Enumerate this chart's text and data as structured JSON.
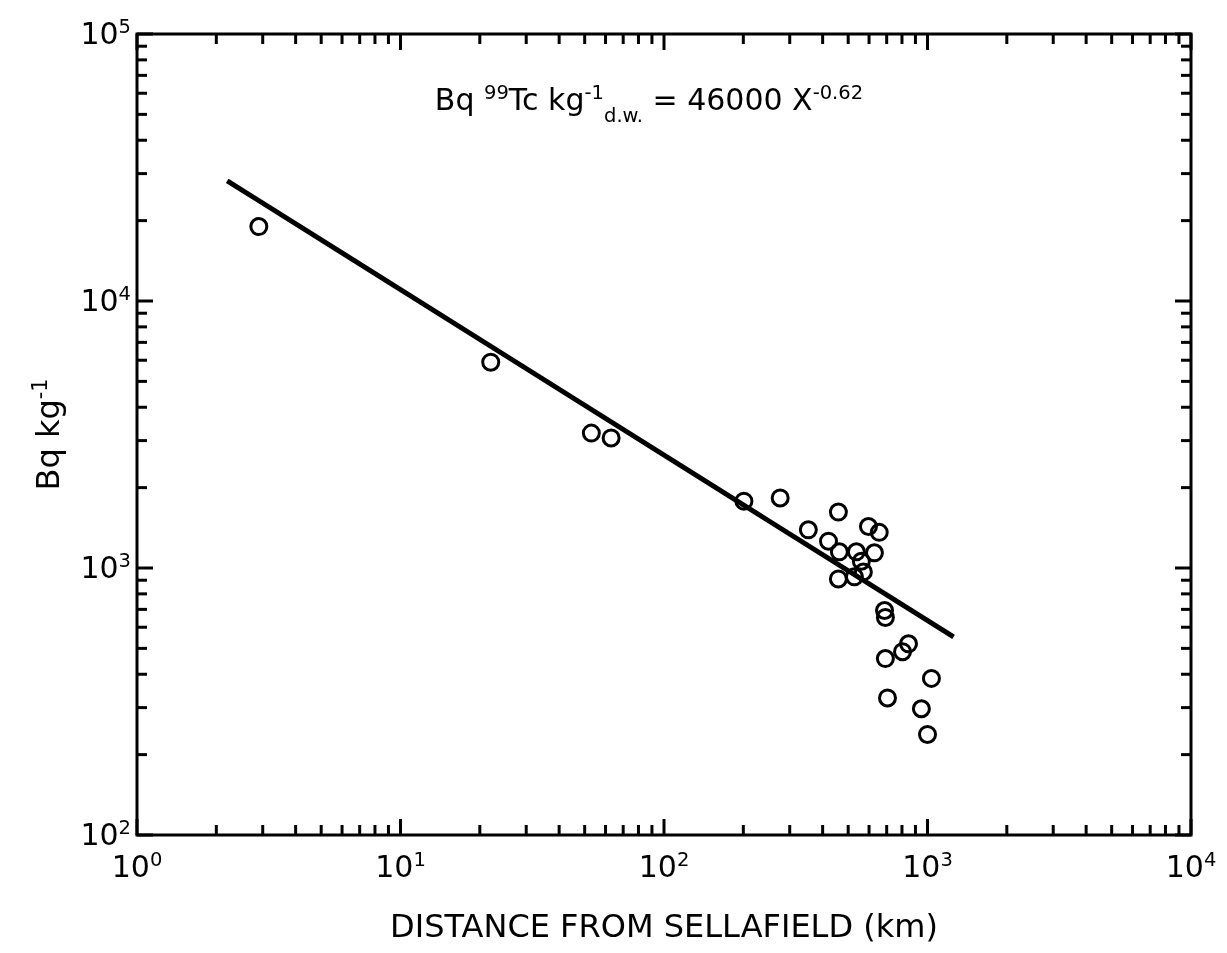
{
  "chart_data": {
    "type": "scatter",
    "xlabel": "DISTANCE FROM SELLAFIELD (km)",
    "ylabel": "Bq kg$^{-1}$",
    "annotations": [
      "Bq $^{99}$Tc kg$^{-1}$$_{d.w.}$ = 46000 X$^{-0.62}$"
    ],
    "log": "xy",
    "grid": false,
    "marker": "circle",
    "xlim": [
      1,
      10000
    ],
    "ylim": [
      100,
      100000
    ],
    "xticks": [
      {
        "value": 1,
        "label": "10$^{0}$"
      },
      {
        "value": 2,
        "label": null
      },
      {
        "value": 3,
        "label": null
      },
      {
        "value": 4,
        "label": null
      },
      {
        "value": 5,
        "label": null
      },
      {
        "value": 6,
        "label": null
      },
      {
        "value": 7,
        "label": null
      },
      {
        "value": 8,
        "label": null
      },
      {
        "value": 9,
        "label": null
      },
      {
        "value": 10,
        "label": "10$^{1}$"
      },
      {
        "value": 20,
        "label": null
      },
      {
        "value": 30,
        "label": null
      },
      {
        "value": 40,
        "label": null
      },
      {
        "value": 50,
        "label": null
      },
      {
        "value": 60,
        "label": null
      },
      {
        "value": 70,
        "label": null
      },
      {
        "value": 80,
        "label": null
      },
      {
        "value": 90,
        "label": null
      },
      {
        "value": 100,
        "label": "10$^{2}$"
      },
      {
        "value": 200,
        "label": null
      },
      {
        "value": 300,
        "label": null
      },
      {
        "value": 400,
        "label": null
      },
      {
        "value": 500,
        "label": null
      },
      {
        "value": 600,
        "label": null
      },
      {
        "value": 700,
        "label": null
      },
      {
        "value": 800,
        "label": null
      },
      {
        "value": 900,
        "label": null
      },
      {
        "value": 1000,
        "label": "10$^{3}$"
      },
      {
        "value": 2000,
        "label": null
      },
      {
        "value": 3000,
        "label": null
      },
      {
        "value": 4000,
        "label": null
      },
      {
        "value": 5000,
        "label": null
      },
      {
        "value": 6000,
        "label": null
      },
      {
        "value": 7000,
        "label": null
      },
      {
        "value": 8000,
        "label": null
      },
      {
        "value": 9000,
        "label": null
      },
      {
        "value": 10000,
        "label": "10$^{4}$"
      }
    ],
    "yticks": [
      {
        "value": 100,
        "label": "10$^{2}$"
      },
      {
        "value": 200,
        "label": null
      },
      {
        "value": 300,
        "label": null
      },
      {
        "value": 400,
        "label": null
      },
      {
        "value": 500,
        "label": null
      },
      {
        "value": 600,
        "label": null
      },
      {
        "value": 700,
        "label": null
      },
      {
        "value": 800,
        "label": null
      },
      {
        "value": 900,
        "label": null
      },
      {
        "value": 1000,
        "label": "10$^{3}$"
      },
      {
        "value": 2000,
        "label": null
      },
      {
        "value": 3000,
        "label": null
      },
      {
        "value": 4000,
        "label": null
      },
      {
        "value": 5000,
        "label": null
      },
      {
        "value": 6000,
        "label": null
      },
      {
        "value": 7000,
        "label": null
      },
      {
        "value": 8000,
        "label": null
      },
      {
        "value": 9000,
        "label": null
      },
      {
        "value": 10000,
        "label": "10$^{4}$"
      },
      {
        "value": 20000,
        "label": null
      },
      {
        "value": 30000,
        "label": null
      },
      {
        "value": 40000,
        "label": null
      },
      {
        "value": 50000,
        "label": null
      },
      {
        "value": 60000,
        "label": null
      },
      {
        "value": 70000,
        "label": null
      },
      {
        "value": 80000,
        "label": null
      },
      {
        "value": 90000,
        "label": null
      },
      {
        "value": 100000,
        "label": "10$^{5}$"
      }
    ],
    "series": [
      {
        "color": "#000000",
        "x": [
          2.9,
          22,
          53,
          63,
          201,
          276,
          459,
          353,
          597,
          656,
          421,
          463,
          537,
          629,
          561,
          571,
          528,
          459,
          687,
          692,
          847,
          804,
          692,
          1035,
          705,
          948,
          1000
        ],
        "values": [
          19000,
          5900,
          3200,
          3070,
          1780,
          1830,
          1620,
          1390,
          1430,
          1360,
          1260,
          1150,
          1150,
          1140,
          1060,
          967,
          927,
          910,
          693,
          653,
          520,
          486,
          458,
          386,
          326,
          297,
          238
        ]
      },
      {
        "type": "line",
        "color": "#000000",
        "line_style": "solid",
        "marker": "none",
        "x": [
          2.2,
          1256
        ],
        "values": [
          28200,
          552
        ]
      }
    ]
  }
}
